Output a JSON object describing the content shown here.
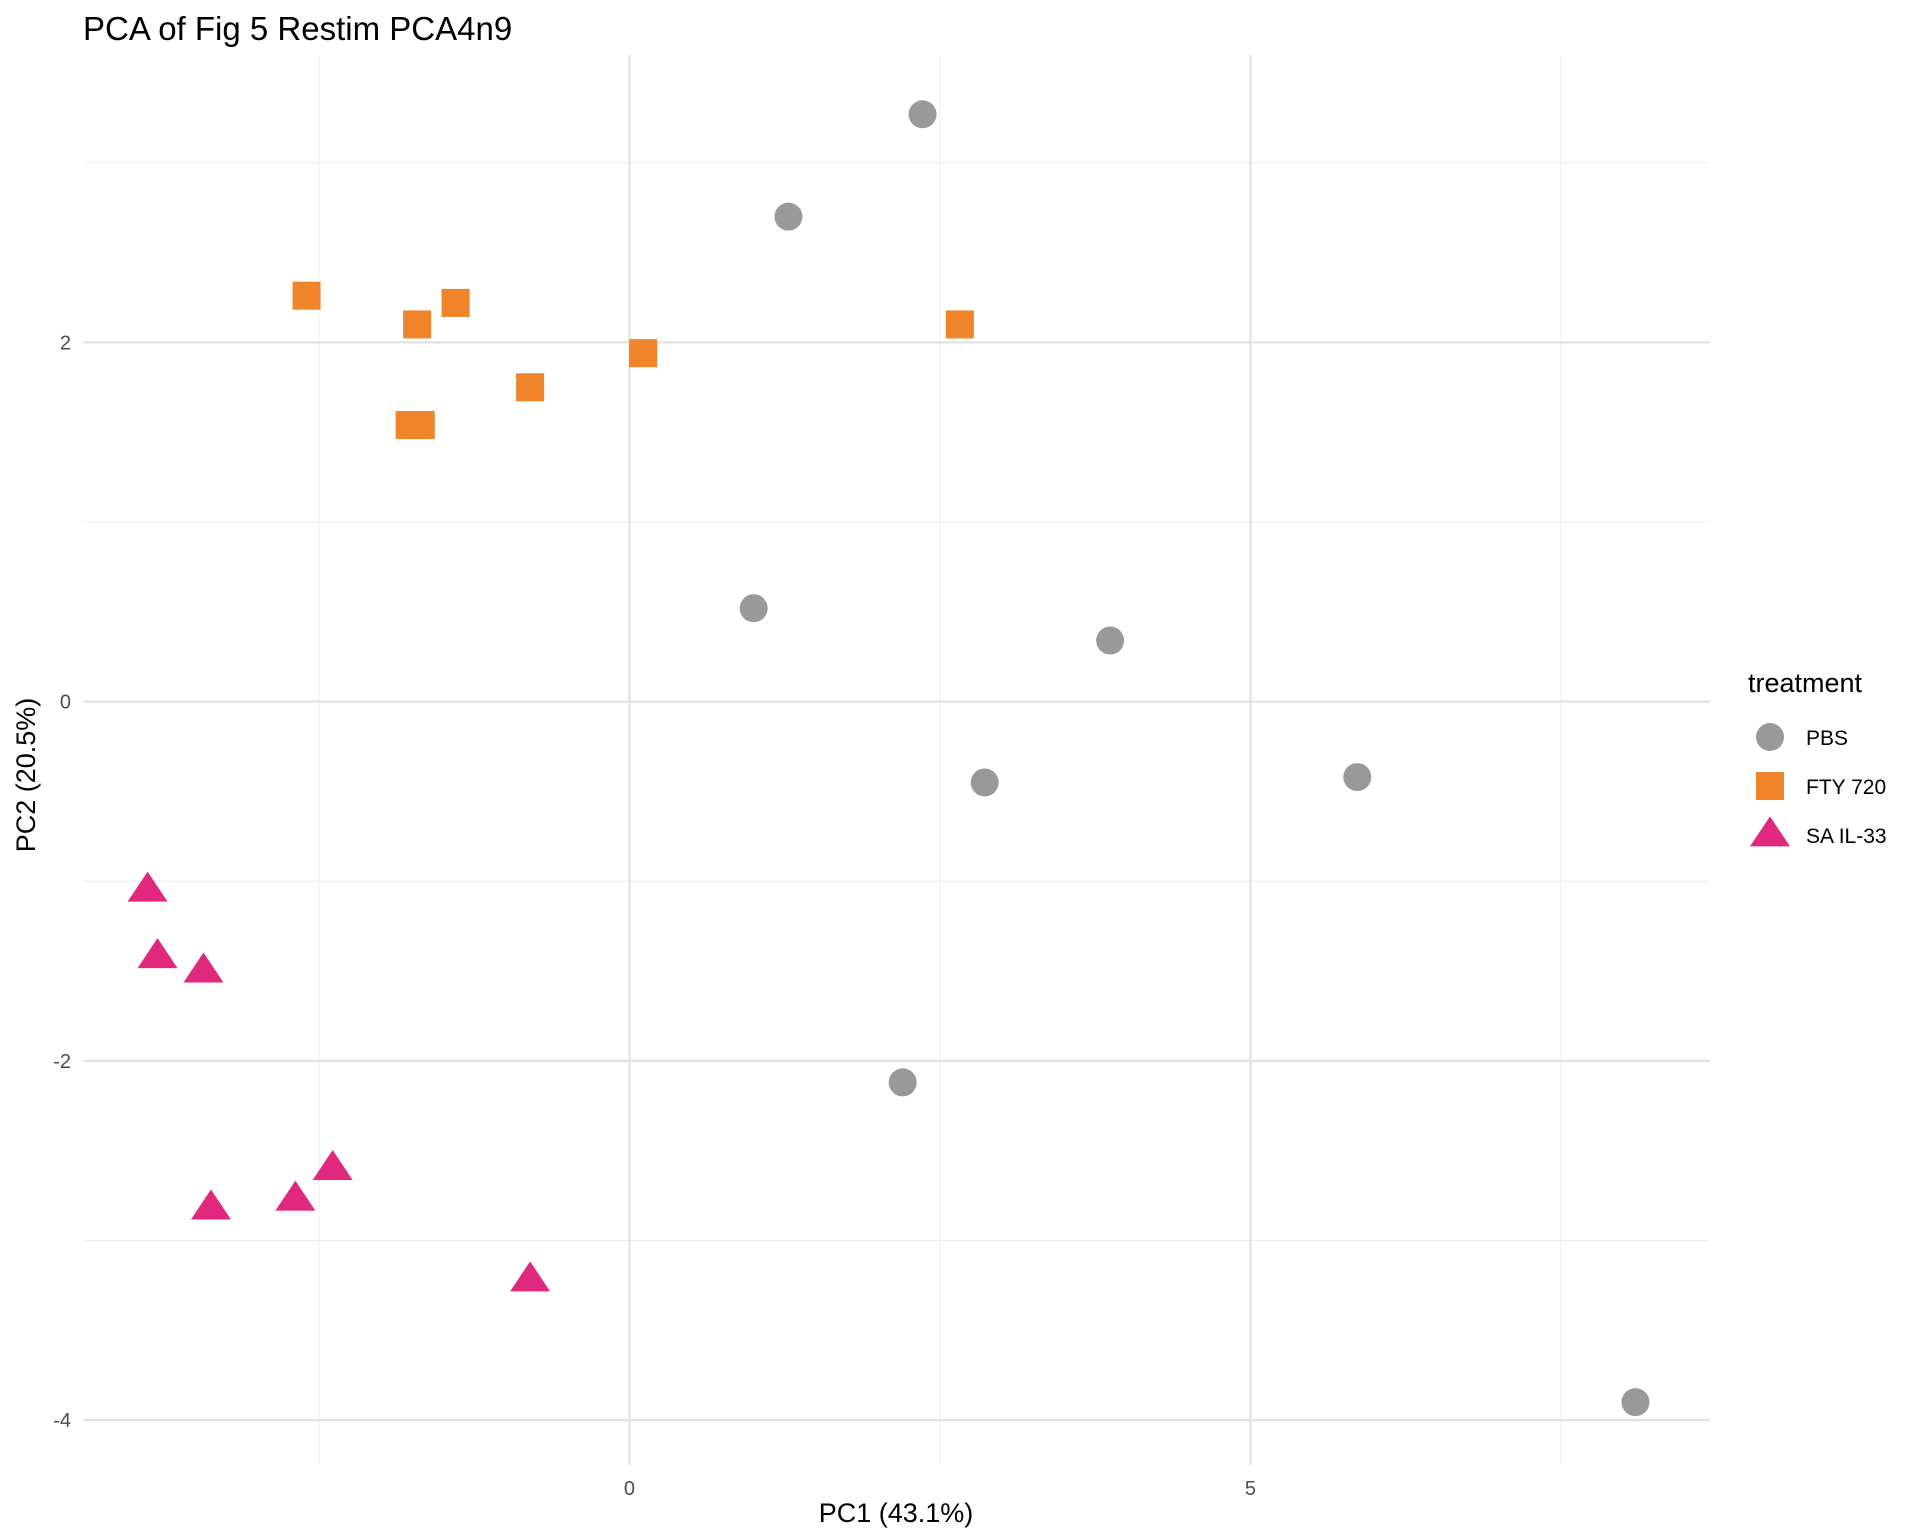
{
  "chart_data": {
    "type": "scatter",
    "title": "PCA of Fig 5 Restim PCA4n9",
    "xlabel": "PC1 (43.1%)",
    "ylabel": "PC2 (20.5%)",
    "xlim": [
      -4.4,
      8.7
    ],
    "ylim": [
      -4.25,
      3.6
    ],
    "x_ticks": [
      0,
      5
    ],
    "x_tick_labels": [
      "0",
      "5"
    ],
    "x_minor_ticks": [
      -2.5,
      2.5,
      7.5
    ],
    "y_ticks": [
      -4,
      -2,
      0,
      2
    ],
    "y_tick_labels": [
      "-4",
      "-2",
      "0",
      "2"
    ],
    "y_minor_ticks": [
      -3,
      -1,
      1,
      3
    ],
    "grid": true,
    "legend": {
      "title": "treatment",
      "position": "right"
    },
    "series": [
      {
        "name": "PBS",
        "shape": "circle",
        "color": "#999999",
        "points": [
          {
            "x": 2.36,
            "y": 3.27
          },
          {
            "x": 1.28,
            "y": 2.7
          },
          {
            "x": 1.0,
            "y": 0.52
          },
          {
            "x": 3.87,
            "y": 0.34
          },
          {
            "x": 2.86,
            "y": -0.45
          },
          {
            "x": 5.86,
            "y": -0.42
          },
          {
            "x": 2.2,
            "y": -2.12
          },
          {
            "x": 8.1,
            "y": -3.9
          }
        ]
      },
      {
        "name": "FTY 720",
        "shape": "square",
        "color": "#F0842B",
        "points": [
          {
            "x": -2.6,
            "y": 2.26
          },
          {
            "x": -1.71,
            "y": 2.1
          },
          {
            "x": -1.4,
            "y": 2.22
          },
          {
            "x": 0.11,
            "y": 1.94
          },
          {
            "x": 2.66,
            "y": 2.1
          },
          {
            "x": -0.8,
            "y": 1.75
          },
          {
            "x": -1.77,
            "y": 1.54
          },
          {
            "x": -1.68,
            "y": 1.54
          }
        ]
      },
      {
        "name": "SA IL-33",
        "shape": "triangle",
        "color": "#E0287E",
        "points": [
          {
            "x": -3.88,
            "y": -1.05
          },
          {
            "x": -3.8,
            "y": -1.42
          },
          {
            "x": -3.43,
            "y": -1.5
          },
          {
            "x": -3.37,
            "y": -2.82
          },
          {
            "x": -2.69,
            "y": -2.77
          },
          {
            "x": -2.39,
            "y": -2.6
          },
          {
            "x": -0.8,
            "y": -3.22
          }
        ]
      }
    ]
  }
}
